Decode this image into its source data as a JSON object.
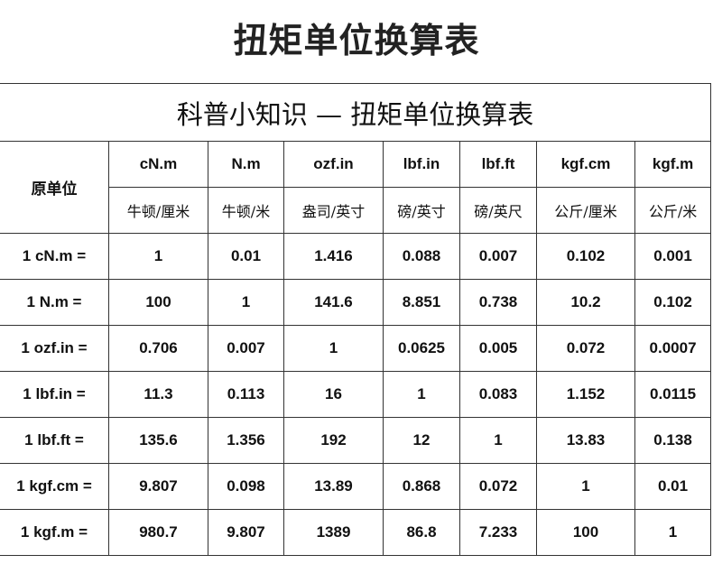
{
  "page_title": "扭矩单位换算表",
  "table": {
    "banner": "科普小知识 — 扭矩单位换算表",
    "origin_header": "原单位",
    "units": [
      "cN.m",
      "N.m",
      "ozf.in",
      "lbf.in",
      "lbf.ft",
      "kgf.cm",
      "kgf.m"
    ],
    "units_cn": [
      "牛顿/厘米",
      "牛顿/米",
      "盎司/英寸",
      "磅/英寸",
      "磅/英尺",
      "公斤/厘米",
      "公斤/米"
    ],
    "rows": [
      {
        "label": "1 cN.m =",
        "values": [
          "1",
          "0.01",
          "1.416",
          "0.088",
          "0.007",
          "0.102",
          "0.001"
        ]
      },
      {
        "label": "1 N.m =",
        "values": [
          "100",
          "1",
          "141.6",
          "8.851",
          "0.738",
          "10.2",
          "0.102"
        ]
      },
      {
        "label": "1 ozf.in =",
        "values": [
          "0.706",
          "0.007",
          "1",
          "0.0625",
          "0.005",
          "0.072",
          "0.0007"
        ]
      },
      {
        "label": "1 lbf.in =",
        "values": [
          "11.3",
          "0.113",
          "16",
          "1",
          "0.083",
          "1.152",
          "0.0115"
        ]
      },
      {
        "label": "1 lbf.ft =",
        "values": [
          "135.6",
          "1.356",
          "192",
          "12",
          "1",
          "13.83",
          "0.138"
        ]
      },
      {
        "label": "1 kgf.cm =",
        "values": [
          "9.807",
          "0.098",
          "13.89",
          "0.868",
          "0.072",
          "1",
          "0.01"
        ]
      },
      {
        "label": "1 kgf.m =",
        "values": [
          "980.7",
          "9.807",
          "1389",
          "86.8",
          "7.233",
          "100",
          "1"
        ]
      }
    ]
  }
}
